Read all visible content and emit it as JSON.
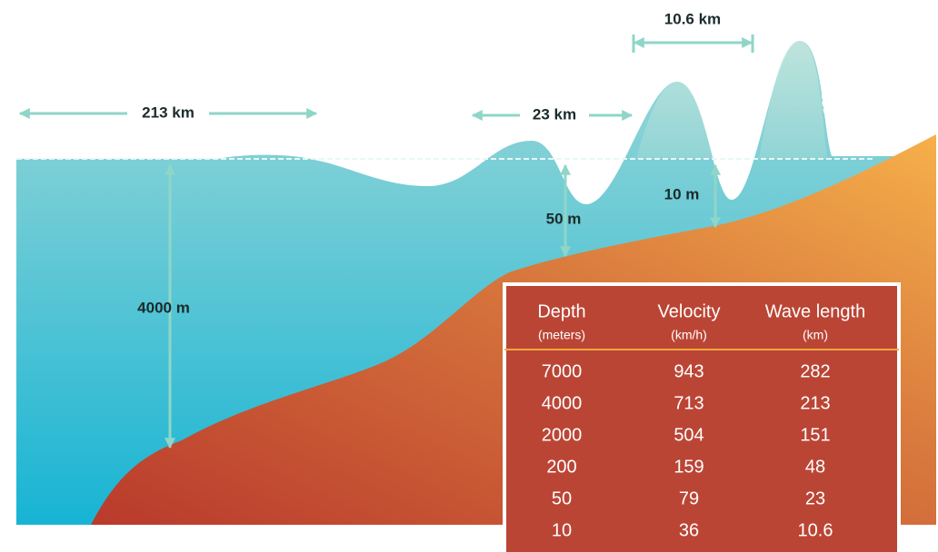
{
  "annotations": {
    "wavelength_open_ocean": "213 km",
    "wavelength_shelf": "23 km",
    "wavelength_shore": "10.6 km",
    "depth_open_ocean": "4000 m",
    "depth_shelf": "50 m",
    "depth_shore": "10 m"
  },
  "table": {
    "header": [
      {
        "name": "Depth",
        "unit": "(meters)"
      },
      {
        "name": "Velocity",
        "unit": "(km/h)"
      },
      {
        "name": "Wave length",
        "unit": "(km)"
      }
    ],
    "rows": [
      [
        7000,
        943,
        282
      ],
      [
        4000,
        713,
        213
      ],
      [
        2000,
        504,
        151
      ],
      [
        200,
        159,
        48
      ],
      [
        50,
        79,
        23
      ],
      [
        10,
        36,
        10.6
      ]
    ]
  }
}
